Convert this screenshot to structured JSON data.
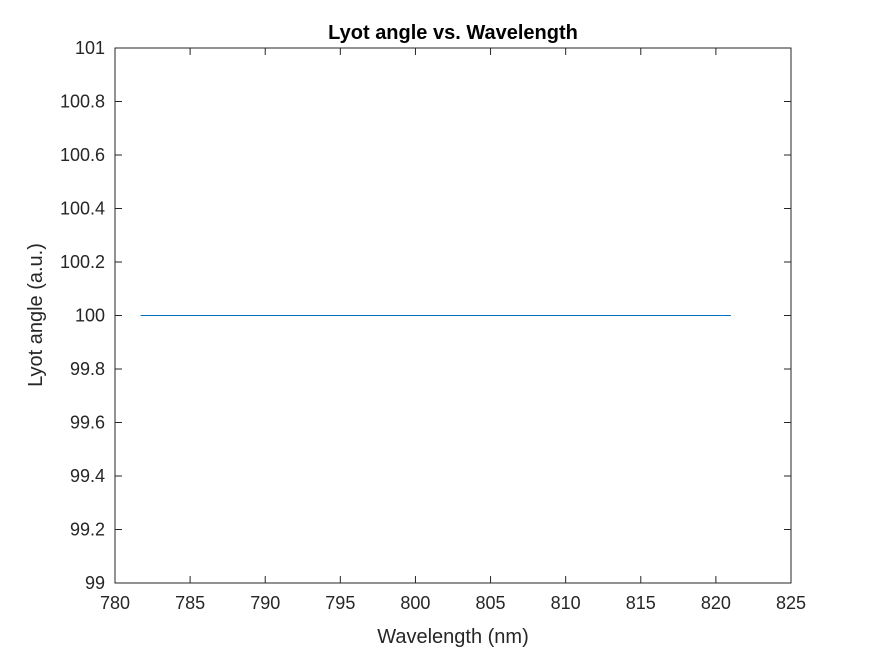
{
  "chart_data": {
    "type": "line",
    "title": "Lyot angle vs. Wavelength",
    "xlabel": "Wavelength (nm)",
    "ylabel": "Lyot angle (a.u.)",
    "xlim": [
      780,
      825
    ],
    "ylim": [
      99,
      101
    ],
    "xticks": [
      780,
      785,
      790,
      795,
      800,
      805,
      810,
      815,
      820,
      825
    ],
    "xtick_labels": [
      "780",
      "785",
      "790",
      "795",
      "800",
      "805",
      "810",
      "815",
      "820",
      "825"
    ],
    "yticks": [
      99,
      99.2,
      99.4,
      99.6,
      99.8,
      100,
      100.2,
      100.4,
      100.6,
      100.8,
      101
    ],
    "ytick_labels": [
      "99",
      "99.2",
      "99.4",
      "99.6",
      "99.8",
      "100",
      "100.2",
      "100.4",
      "100.6",
      "100.8",
      "101"
    ],
    "grid": false,
    "series": [
      {
        "color": "#0072BD",
        "x": [
          781.7,
          821.0
        ],
        "y": [
          100,
          100
        ]
      }
    ]
  }
}
